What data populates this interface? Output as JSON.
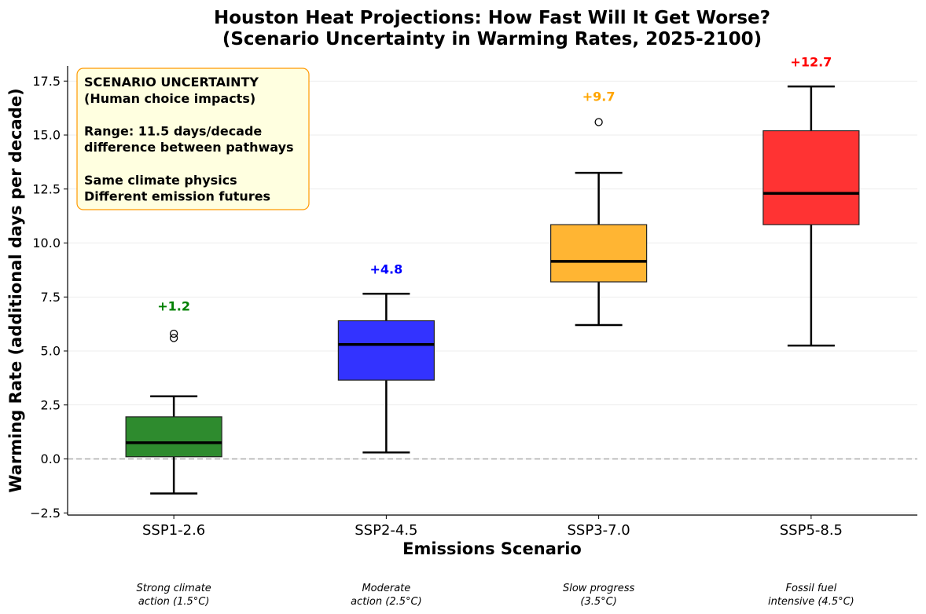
{
  "chart_data": {
    "type": "box",
    "title": [
      "Houston Heat Projections: How Fast Will It Get Worse?",
      "(Scenario Uncertainty in Warming Rates, 2025-2100)"
    ],
    "xlabel": "Emissions Scenario",
    "ylabel": "Warming Rate (additional days per decade)",
    "ylim": [
      -2.6,
      18.2
    ],
    "yticks": [
      -2.5,
      0.0,
      2.5,
      5.0,
      7.5,
      10.0,
      12.5,
      15.0,
      17.5
    ],
    "ytick_labels": [
      "−2.5",
      "0.0",
      "2.5",
      "5.0",
      "7.5",
      "10.0",
      "12.5",
      "15.0",
      "17.5"
    ],
    "grid": "horizontal",
    "reference_line": 0.0,
    "categories": [
      "SSP1-2.6",
      "SSP2-4.5",
      "SSP3-7.0",
      "SSP5-8.5"
    ],
    "descriptions": [
      [
        "Strong climate",
        "action (1.5°C)"
      ],
      [
        "Moderate",
        "action (2.5°C)"
      ],
      [
        "Slow progress",
        "(3.5°C)"
      ],
      [
        "Fossil fuel",
        "intensive (4.5°C)"
      ]
    ],
    "series": [
      {
        "name": "SSP1-2.6",
        "whisker_low": -1.6,
        "q1": 0.1,
        "median": 0.75,
        "q3": 1.95,
        "whisker_high": 2.9,
        "outliers": [
          5.6,
          5.8
        ],
        "mean_label": "+1.2",
        "mean_label_value": 7.1,
        "color": "#2e8b2e",
        "label_color": "#008000"
      },
      {
        "name": "SSP2-4.5",
        "whisker_low": 0.3,
        "q1": 3.65,
        "median": 5.3,
        "q3": 6.4,
        "whisker_high": 7.65,
        "outliers": [],
        "mean_label": "+4.8",
        "mean_label_value": 8.8,
        "color": "#3333ff",
        "label_color": "#0000ff"
      },
      {
        "name": "SSP3-7.0",
        "whisker_low": 6.2,
        "q1": 8.2,
        "median": 9.15,
        "q3": 10.85,
        "whisker_high": 13.25,
        "outliers": [
          15.6
        ],
        "mean_label": "+9.7",
        "mean_label_value": 16.8,
        "color": "#ffb533",
        "label_color": "#ffa500"
      },
      {
        "name": "SSP5-8.5",
        "whisker_low": 5.25,
        "q1": 10.85,
        "median": 12.3,
        "q3": 15.2,
        "whisker_high": 17.25,
        "outliers": [],
        "mean_label": "+12.7",
        "mean_label_value": 18.4,
        "color": "#ff3333",
        "label_color": "#ff0000"
      }
    ],
    "annotation_box": {
      "position": "top-left",
      "lines": [
        "SCENARIO UNCERTAINTY",
        "(Human choice impacts)",
        "",
        "Range: 11.5 days/decade",
        "difference between pathways",
        "",
        "Same climate physics",
        "Different emission futures"
      ],
      "fill": "#ffffe0",
      "border": "#ff9900"
    }
  }
}
